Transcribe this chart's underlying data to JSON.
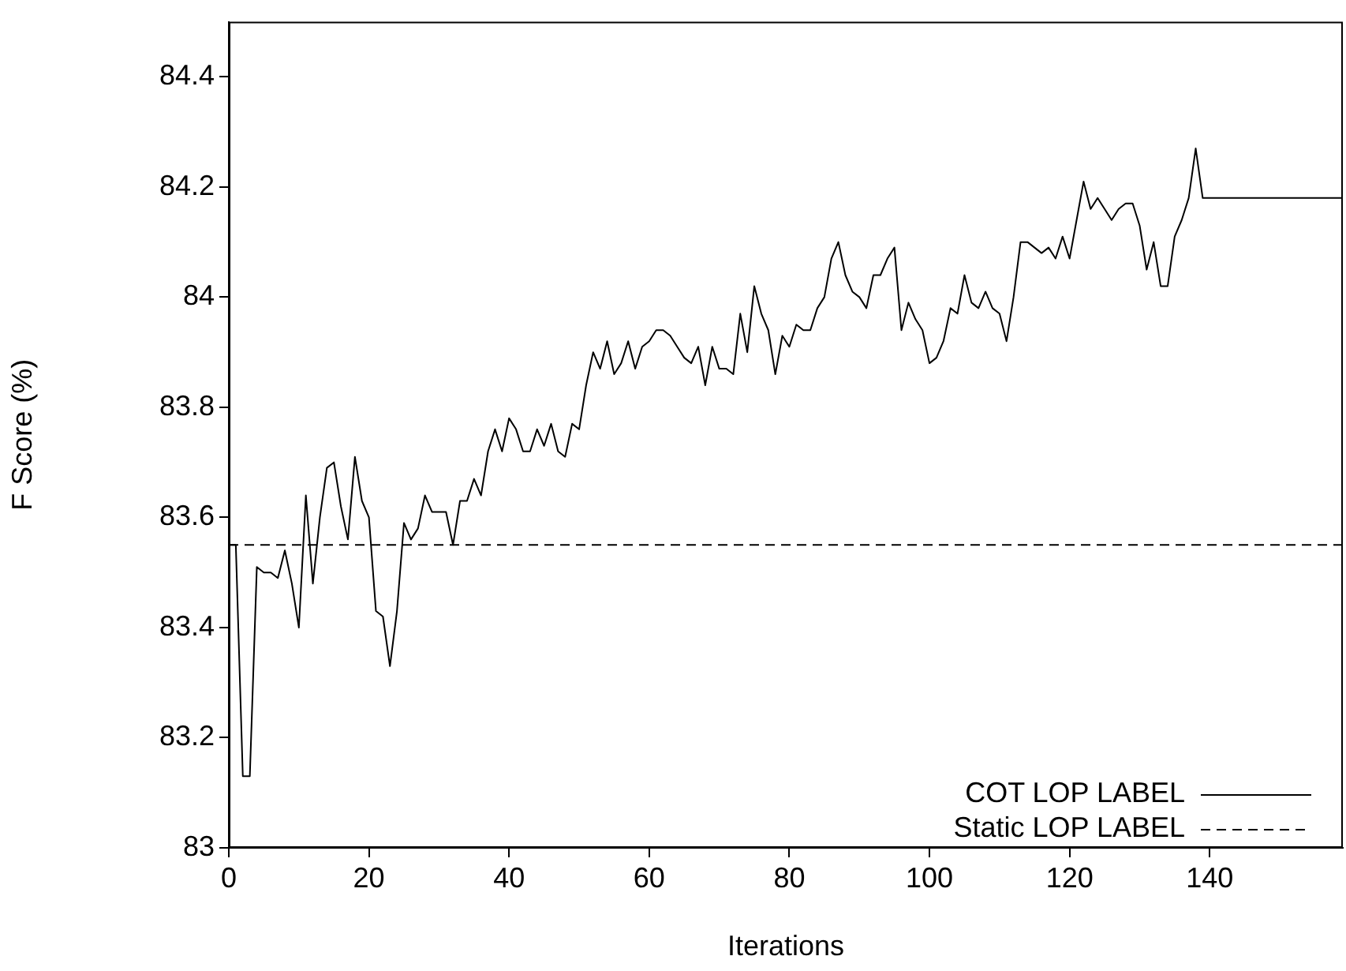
{
  "chart_data": {
    "type": "line",
    "xlabel": "Iterations",
    "ylabel": "F Score (%)",
    "xlim": [
      0,
      159
    ],
    "xticks": [
      0,
      20,
      40,
      60,
      80,
      100,
      120,
      140
    ],
    "ylim": [
      83,
      84.5
    ],
    "yticks": [
      83,
      83.2,
      83.4,
      83.6,
      83.8,
      84,
      84.2,
      84.4
    ],
    "grid": false,
    "legend": "bottom right",
    "marker": "none",
    "series": [
      {
        "name": "COT LOP LABEL",
        "color": "#000000",
        "line_style": "solid",
        "x": [
          0,
          1,
          2,
          3,
          4,
          5,
          6,
          7,
          8,
          9,
          10,
          11,
          12,
          13,
          14,
          15,
          16,
          17,
          18,
          19,
          20,
          21,
          22,
          23,
          24,
          25,
          26,
          27,
          28,
          29,
          30,
          31,
          32,
          33,
          34,
          35,
          36,
          37,
          38,
          39,
          40,
          41,
          42,
          43,
          44,
          45,
          46,
          47,
          48,
          49,
          50,
          51,
          52,
          53,
          54,
          55,
          56,
          57,
          58,
          59,
          60,
          61,
          62,
          63,
          64,
          65,
          66,
          67,
          68,
          69,
          70,
          71,
          72,
          73,
          74,
          75,
          76,
          77,
          78,
          79,
          80,
          81,
          82,
          83,
          84,
          85,
          86,
          87,
          88,
          89,
          90,
          91,
          92,
          93,
          94,
          95,
          96,
          97,
          98,
          99,
          100,
          101,
          102,
          103,
          104,
          105,
          106,
          107,
          108,
          109,
          110,
          111,
          112,
          113,
          114,
          115,
          116,
          117,
          118,
          119,
          120,
          121,
          122,
          123,
          124,
          125,
          126,
          127,
          128,
          129,
          130,
          131,
          132,
          133,
          134,
          135,
          136,
          137,
          138,
          139,
          159
        ],
        "values": [
          83.55,
          83.55,
          83.13,
          83.13,
          83.51,
          83.5,
          83.5,
          83.49,
          83.54,
          83.48,
          83.4,
          83.64,
          83.48,
          83.6,
          83.69,
          83.7,
          83.62,
          83.56,
          83.71,
          83.63,
          83.6,
          83.43,
          83.42,
          83.33,
          83.43,
          83.59,
          83.56,
          83.58,
          83.64,
          83.61,
          83.61,
          83.61,
          83.55,
          83.63,
          83.63,
          83.67,
          83.64,
          83.72,
          83.76,
          83.72,
          83.78,
          83.76,
          83.72,
          83.72,
          83.76,
          83.73,
          83.77,
          83.72,
          83.71,
          83.77,
          83.76,
          83.84,
          83.9,
          83.87,
          83.92,
          83.86,
          83.88,
          83.92,
          83.87,
          83.91,
          83.92,
          83.94,
          83.94,
          83.93,
          83.91,
          83.89,
          83.88,
          83.91,
          83.84,
          83.91,
          83.87,
          83.87,
          83.86,
          83.97,
          83.9,
          84.02,
          83.97,
          83.94,
          83.86,
          83.93,
          83.91,
          83.95,
          83.94,
          83.94,
          83.98,
          84,
          84.07,
          84.1,
          84.04,
          84.01,
          84,
          83.98,
          84.04,
          84.04,
          84.07,
          84.09,
          83.94,
          83.99,
          83.96,
          83.94,
          83.88,
          83.89,
          83.92,
          83.98,
          83.97,
          84.04,
          83.99,
          83.98,
          84.01,
          83.98,
          83.97,
          83.92,
          84,
          84.1,
          84.1,
          84.09,
          84.08,
          84.09,
          84.07,
          84.11,
          84.07,
          84.14,
          84.21,
          84.16,
          84.18,
          84.16,
          84.14,
          84.16,
          84.17,
          84.17,
          84.13,
          84.05,
          84.1,
          84.02,
          84.02,
          84.11,
          84.14,
          84.18,
          84.27,
          84.18,
          84.18
        ]
      },
      {
        "name": "Static LOP LABEL",
        "color": "#000000",
        "line_style": "dashed",
        "x": [
          0,
          159
        ],
        "values": [
          83.55,
          83.55
        ]
      }
    ]
  }
}
